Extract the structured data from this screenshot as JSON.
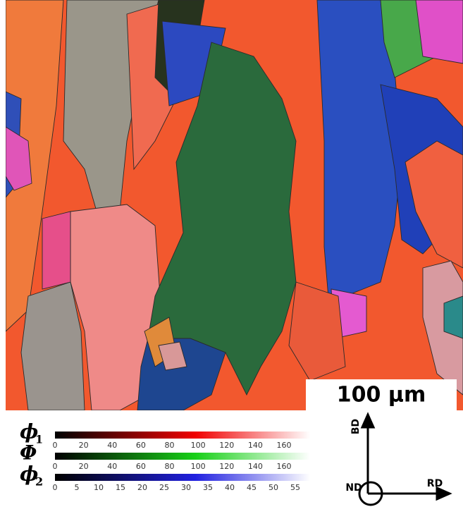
{
  "scale_bar": "100 μm",
  "colorbars": [
    {
      "symbol": "ϕ",
      "subscript": "1",
      "ticks": [
        0,
        20,
        40,
        60,
        80,
        100,
        120,
        140,
        160
      ]
    },
    {
      "symbol": "Φ",
      "ticks": [
        0,
        20,
        40,
        60,
        80,
        100,
        120,
        140,
        160
      ]
    },
    {
      "symbol": "ϕ",
      "subscript": "2",
      "ticks": [
        0,
        5,
        10,
        15,
        20,
        25,
        30,
        35,
        40,
        45,
        50,
        55
      ]
    }
  ],
  "axes": [
    "BD",
    "RD",
    "ND"
  ]
}
